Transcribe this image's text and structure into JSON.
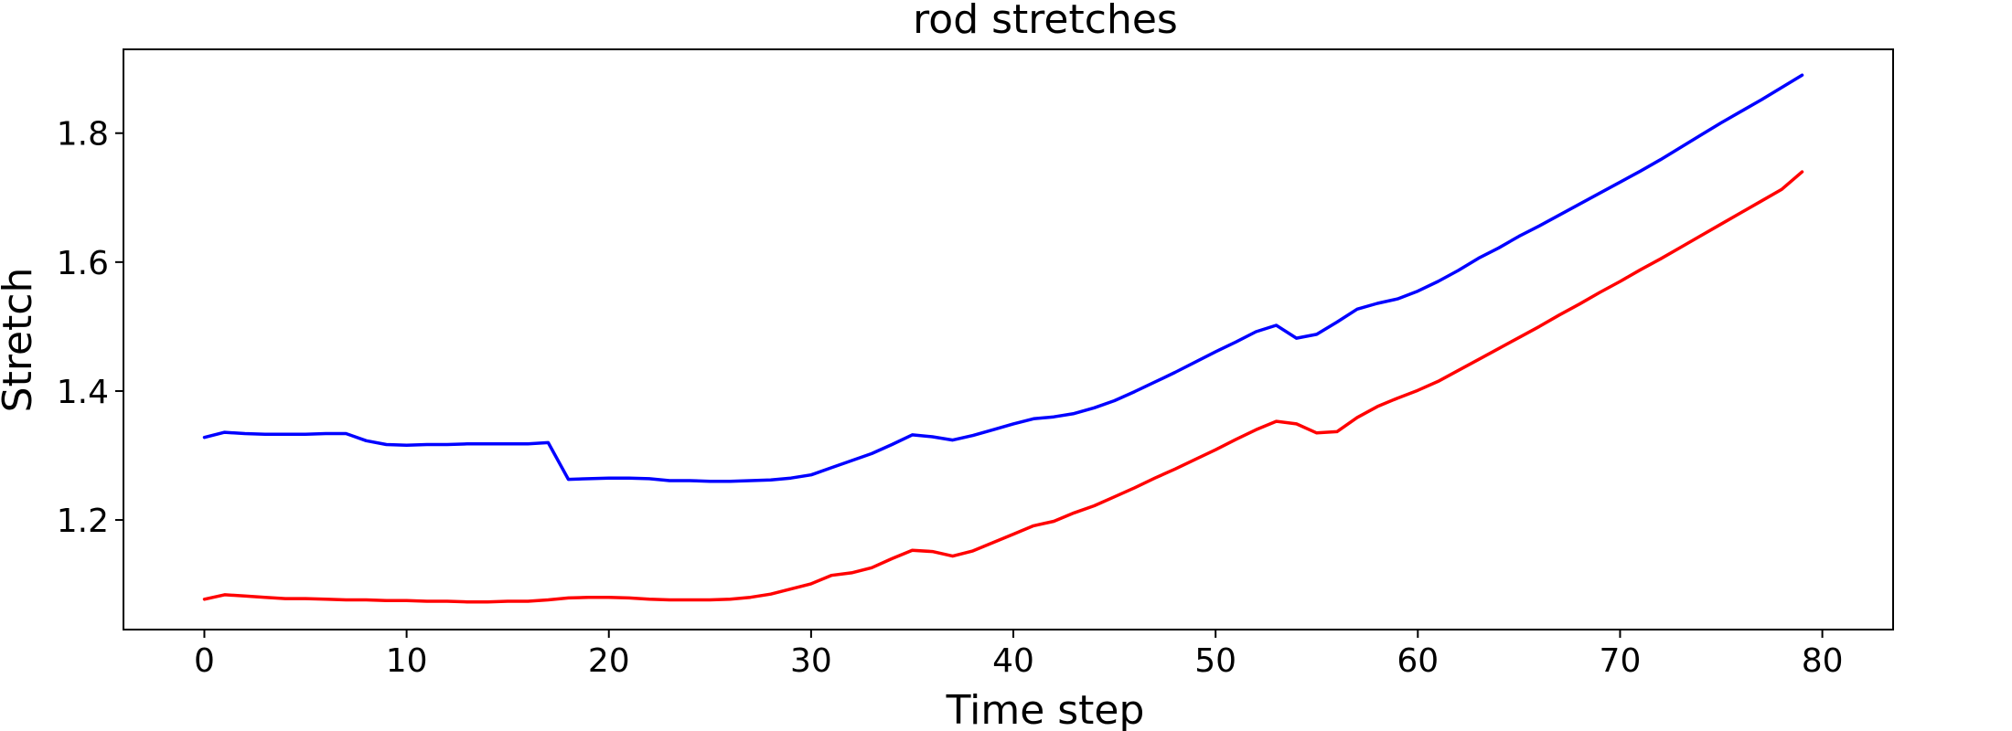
{
  "chart_data": {
    "type": "line",
    "title": "rod stretches",
    "xlabel": "Time step",
    "ylabel": "Stretch",
    "xlim": [
      -4,
      83.5
    ],
    "ylim": [
      1.03,
      1.93
    ],
    "xticks": [
      0,
      10,
      20,
      30,
      40,
      50,
      60,
      70,
      80
    ],
    "yticks": [
      1.2,
      1.4,
      1.6,
      1.8
    ],
    "grid": false,
    "x": [
      0,
      1,
      2,
      3,
      4,
      5,
      6,
      7,
      8,
      9,
      10,
      11,
      12,
      13,
      14,
      15,
      16,
      17,
      18,
      19,
      20,
      21,
      22,
      23,
      24,
      25,
      26,
      27,
      28,
      29,
      30,
      31,
      32,
      33,
      34,
      35,
      36,
      37,
      38,
      39,
      40,
      41,
      42,
      43,
      44,
      45,
      46,
      47,
      48,
      49,
      50,
      51,
      52,
      53,
      54,
      55,
      56,
      57,
      58,
      59,
      60,
      61,
      62,
      63,
      64,
      65,
      66,
      67,
      68,
      69,
      70,
      71,
      72,
      73,
      74,
      75,
      76,
      77,
      78,
      79
    ],
    "series": [
      {
        "color": "#0000ff",
        "values": [
          1.328,
          1.336,
          1.334,
          1.333,
          1.333,
          1.333,
          1.334,
          1.334,
          1.323,
          1.317,
          1.316,
          1.317,
          1.317,
          1.318,
          1.318,
          1.318,
          1.318,
          1.32,
          1.263,
          1.264,
          1.265,
          1.265,
          1.264,
          1.261,
          1.261,
          1.26,
          1.26,
          1.261,
          1.262,
          1.265,
          1.27,
          1.281,
          1.292,
          1.303,
          1.317,
          1.332,
          1.329,
          1.324,
          1.331,
          1.34,
          1.349,
          1.357,
          1.36,
          1.365,
          1.374,
          1.385,
          1.399,
          1.414,
          1.429,
          1.445,
          1.461,
          1.476,
          1.492,
          1.502,
          1.482,
          1.488,
          1.507,
          1.527,
          1.536,
          1.543,
          1.555,
          1.57,
          1.587,
          1.606,
          1.622,
          1.64,
          1.656,
          1.673,
          1.69,
          1.707,
          1.724,
          1.741,
          1.759,
          1.778,
          1.797,
          1.816,
          1.834,
          1.852,
          1.871,
          1.89
        ]
      },
      {
        "color": "#ff0000",
        "values": [
          1.077,
          1.084,
          1.082,
          1.08,
          1.078,
          1.078,
          1.077,
          1.076,
          1.076,
          1.075,
          1.075,
          1.074,
          1.074,
          1.073,
          1.073,
          1.074,
          1.074,
          1.076,
          1.079,
          1.08,
          1.08,
          1.079,
          1.077,
          1.076,
          1.076,
          1.076,
          1.077,
          1.08,
          1.085,
          1.093,
          1.101,
          1.114,
          1.118,
          1.126,
          1.14,
          1.153,
          1.151,
          1.144,
          1.152,
          1.165,
          1.178,
          1.191,
          1.198,
          1.211,
          1.222,
          1.236,
          1.25,
          1.265,
          1.279,
          1.294,
          1.309,
          1.325,
          1.34,
          1.353,
          1.349,
          1.335,
          1.337,
          1.359,
          1.376,
          1.389,
          1.401,
          1.415,
          1.432,
          1.449,
          1.466,
          1.483,
          1.5,
          1.518,
          1.535,
          1.553,
          1.57,
          1.588,
          1.605,
          1.623,
          1.641,
          1.659,
          1.677,
          1.695,
          1.713,
          1.74
        ]
      }
    ]
  }
}
